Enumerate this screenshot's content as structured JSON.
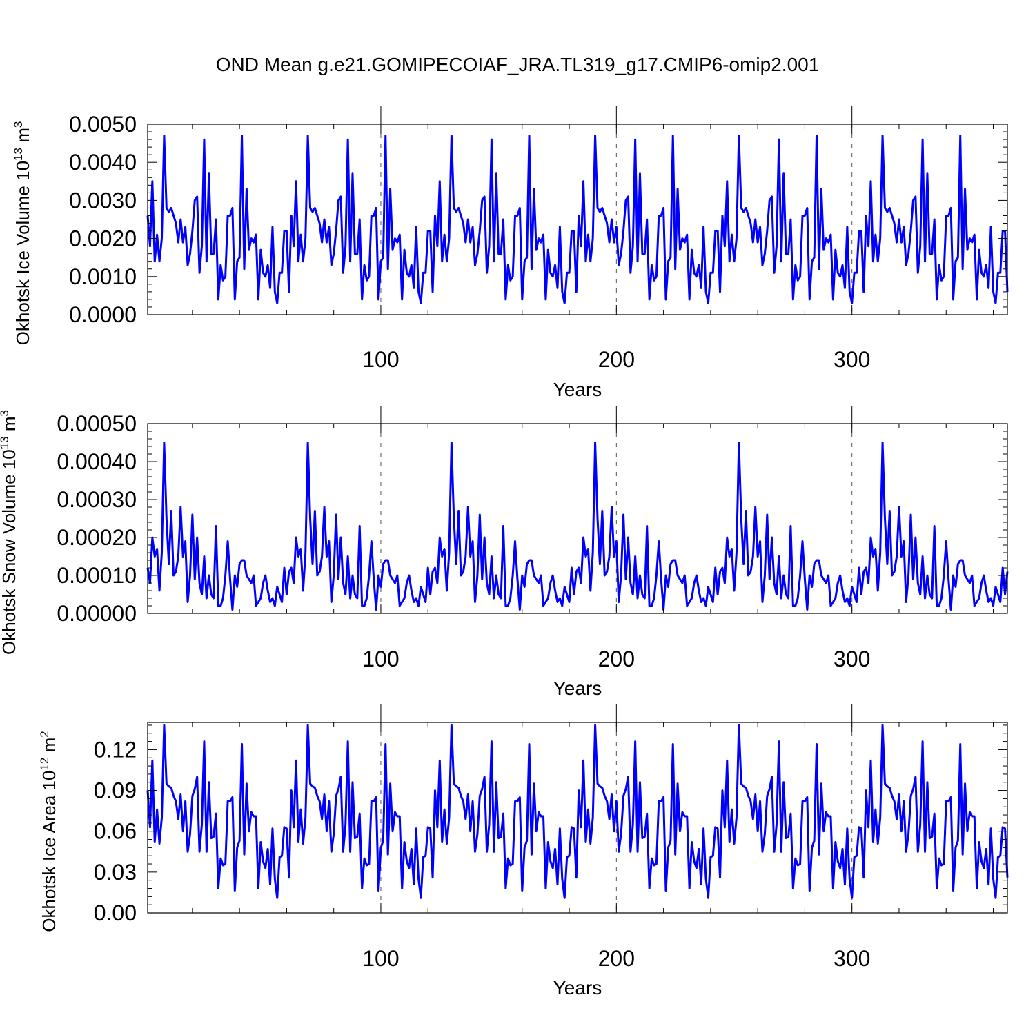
{
  "title": "OND Mean g.e21.GOMIPECOIAF_JRA.TL319_g17.CMIP6-omip2.001",
  "chart_data": [
    {
      "type": "line",
      "ylabel": "Okhotsk Ice Volume 10",
      "yunit_exp": "13",
      "yunit": "m",
      "yunit_pow": "3",
      "xlabel": "Years",
      "xlim": [
        1,
        366
      ],
      "ylim": [
        0,
        0.005
      ],
      "yticks": [
        "0.0000",
        "0.0010",
        "0.0020",
        "0.0030",
        "0.0040",
        "0.0050"
      ],
      "xticks": [
        "100",
        "200",
        "300"
      ],
      "series_color": "#0000ff",
      "pattern": [
        0.0026,
        0.0018,
        0.0035,
        0.0014,
        0.0021,
        0.0014,
        0.002,
        0.0047,
        0.0028,
        0.0027,
        0.0028,
        0.0026,
        0.0024,
        0.0019,
        0.0025,
        0.0019,
        0.0023,
        0.0013,
        0.0016,
        0.0022,
        0.003,
        0.0031,
        0.0011,
        0.0018,
        0.0046,
        0.0014,
        0.0037,
        0.0016,
        0.0016,
        0.0025,
        0.0004,
        0.0013,
        0.0009,
        0.001,
        0.0026,
        0.0026,
        0.0028,
        0.0004,
        0.0014,
        0.0015,
        0.0047,
        0.0012,
        0.0033,
        0.0017,
        0.002,
        0.0019,
        0.0021,
        0.0004,
        0.0017,
        0.0011,
        0.001,
        0.0013,
        0.0007,
        0.0023,
        0.0006,
        0.0003,
        0.0011,
        0.0011,
        0.0022,
        0.0022,
        0.0006
      ],
      "period": 61,
      "count": 366
    },
    {
      "type": "line",
      "ylabel": "Okhotsk Snow Volume 10",
      "yunit_exp": "13",
      "yunit": "m",
      "yunit_pow": "3",
      "xlabel": "Years",
      "xlim": [
        1,
        366
      ],
      "ylim": [
        0,
        0.0005
      ],
      "yticks": [
        "0.00000",
        "0.00010",
        "0.00020",
        "0.00030",
        "0.00040",
        "0.00050"
      ],
      "xticks": [
        "100",
        "200",
        "300"
      ],
      "series_color": "#0000ff",
      "pattern": [
        0.00012,
        8e-05,
        0.0002,
        0.00015,
        0.00017,
        6e-05,
        0.00016,
        0.00045,
        0.00025,
        0.00013,
        0.00027,
        0.0001,
        0.00011,
        0.00015,
        0.00028,
        0.00015,
        0.00019,
        3e-05,
        0.0001,
        0.00026,
        9e-05,
        0.0002,
        8e-05,
        5e-05,
        0.00015,
        4e-05,
        0.0001,
        5e-05,
        4e-05,
        0.00023,
        2e-05,
        2e-05,
        4e-05,
        0.0001,
        0.00019,
        9e-05,
        1e-05,
        0.0001,
        7e-05,
        0.00013,
        0.00014,
        0.00014,
        0.0001,
        9e-05,
        8e-05,
        0.0001,
        2e-05,
        3e-05,
        4e-05,
        8e-05,
        0.0001,
        6e-05,
        3e-05,
        4e-05,
        2e-05,
        7e-05,
        5e-05,
        3e-05,
        0.00012,
        5e-05,
        0.00011
      ],
      "period": 61,
      "count": 366
    },
    {
      "type": "line",
      "ylabel": "Okhotsk Ice Area 10",
      "yunit_exp": "12",
      "yunit": "m",
      "yunit_pow": "2",
      "xlabel": "Years",
      "xlim": [
        1,
        366
      ],
      "ylim": [
        0,
        0.14
      ],
      "yticks": [
        "0.00",
        "0.03",
        "0.06",
        "0.09",
        "0.12"
      ],
      "ytick_values": [
        0,
        0.03,
        0.06,
        0.09,
        0.12
      ],
      "xticks": [
        "100",
        "200",
        "300"
      ],
      "series_color": "#0000ff",
      "pattern": [
        0.09,
        0.063,
        0.112,
        0.052,
        0.076,
        0.051,
        0.07,
        0.138,
        0.095,
        0.093,
        0.092,
        0.086,
        0.082,
        0.069,
        0.087,
        0.06,
        0.082,
        0.045,
        0.058,
        0.086,
        0.091,
        0.1,
        0.045,
        0.065,
        0.126,
        0.045,
        0.096,
        0.055,
        0.056,
        0.073,
        0.018,
        0.04,
        0.035,
        0.036,
        0.082,
        0.082,
        0.085,
        0.016,
        0.048,
        0.053,
        0.124,
        0.043,
        0.095,
        0.06,
        0.074,
        0.071,
        0.071,
        0.018,
        0.052,
        0.038,
        0.033,
        0.047,
        0.021,
        0.062,
        0.025,
        0.011,
        0.041,
        0.042,
        0.063,
        0.062,
        0.026
      ],
      "period": 61,
      "count": 366
    }
  ]
}
